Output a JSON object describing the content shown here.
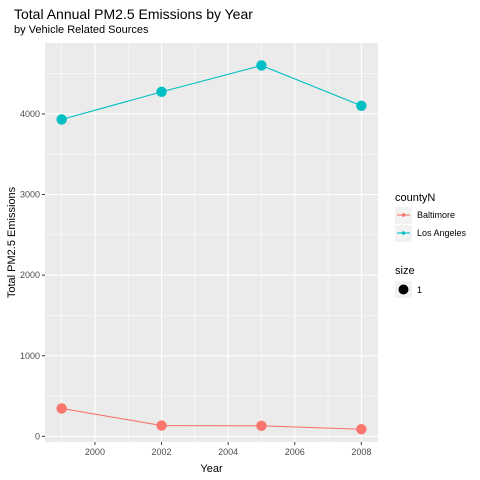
{
  "chart_data": {
    "type": "line",
    "title": "Total Annual PM2.5 Emissions by Year",
    "subtitle": "by Vehicle Related Sources",
    "xlabel": "Year",
    "ylabel": "Total PM2.5 Emissions",
    "x": [
      1999,
      2002,
      2005,
      2008
    ],
    "xlim": [
      1998.5,
      2008.5
    ],
    "ylim": [
      -70,
      4880
    ],
    "xticks": [
      2000,
      2002,
      2004,
      2006,
      2008
    ],
    "yticks": [
      0,
      1000,
      2000,
      3000,
      4000
    ],
    "grid": true,
    "legend_position": "right",
    "series": [
      {
        "name": "Baltimore",
        "color": "#F8766D",
        "values": [
          346.82,
          134.31,
          130.43,
          88.28
        ]
      },
      {
        "name": "Los Angeles",
        "color": "#00BFC4",
        "values": [
          3931.12,
          4274.03,
          4601.41,
          4101.32
        ]
      }
    ],
    "legend": {
      "color_title": "countyN",
      "size_title": "size",
      "size_label": "1"
    }
  }
}
